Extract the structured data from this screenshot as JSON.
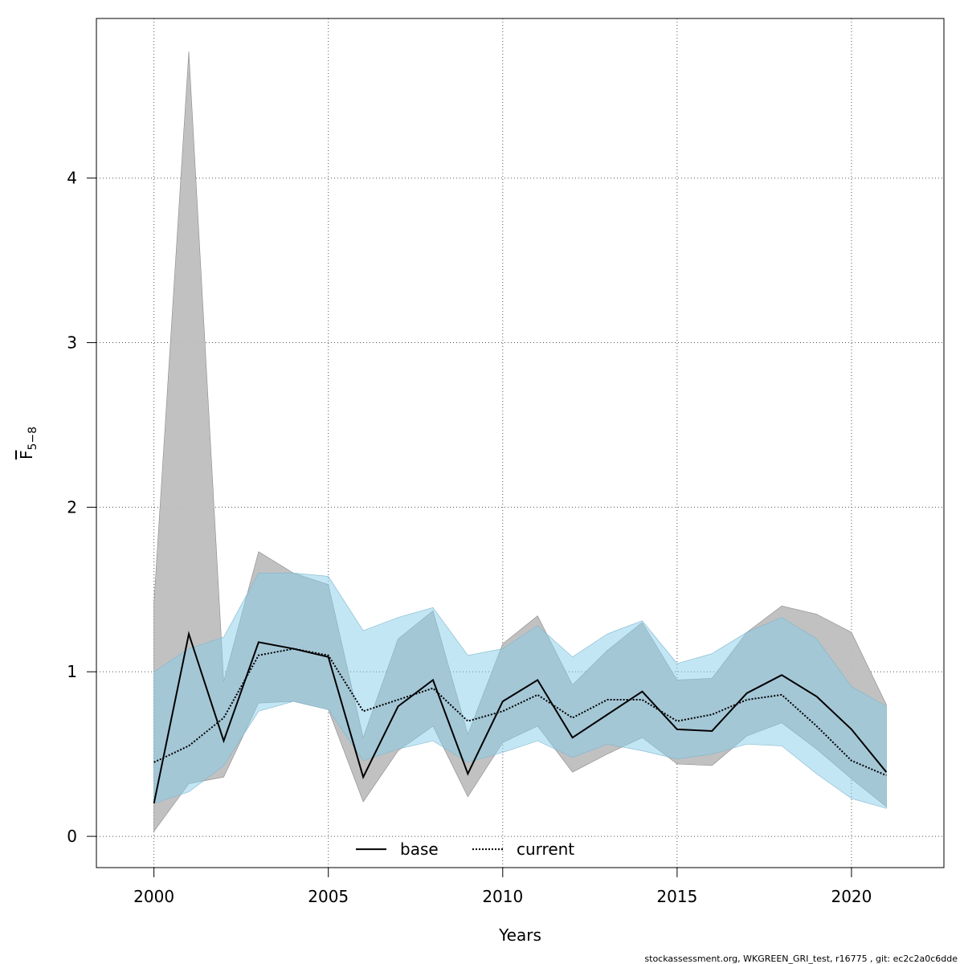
{
  "chart_data": {
    "type": "line",
    "title": "",
    "xlabel": "Years",
    "ylabel_main": "F",
    "ylabel_sub": "5−8",
    "xlim": [
      1998.35,
      2022.65
    ],
    "ylim": [
      -0.19,
      4.97
    ],
    "x_ticks": [
      2000,
      2005,
      2010,
      2015,
      2020
    ],
    "y_ticks": [
      0,
      1,
      2,
      3,
      4
    ],
    "grid": true,
    "legend_position": "bottom-center",
    "x": [
      2000,
      2001,
      2002,
      2003,
      2004,
      2005,
      2006,
      2007,
      2008,
      2009,
      2010,
      2011,
      2012,
      2013,
      2014,
      2015,
      2016,
      2017,
      2018,
      2019,
      2020,
      2021
    ],
    "series": [
      {
        "name": "base",
        "color": "#000000",
        "band_color": "#bebebe",
        "line_style": "solid",
        "values": [
          0.2,
          1.23,
          0.58,
          1.18,
          1.14,
          1.09,
          0.36,
          0.79,
          0.95,
          0.38,
          0.82,
          0.95,
          0.6,
          0.74,
          0.88,
          0.65,
          0.64,
          0.87,
          0.98,
          0.85,
          0.65,
          0.39
        ],
        "lower": [
          0.03,
          0.32,
          0.36,
          0.81,
          0.82,
          0.77,
          0.21,
          0.52,
          0.67,
          0.24,
          0.57,
          0.67,
          0.39,
          0.5,
          0.6,
          0.44,
          0.43,
          0.61,
          0.69,
          0.53,
          0.35,
          0.18
        ],
        "upper": [
          1.42,
          4.77,
          0.94,
          1.73,
          1.6,
          1.53,
          0.6,
          1.2,
          1.37,
          0.62,
          1.17,
          1.34,
          0.92,
          1.13,
          1.3,
          0.95,
          0.96,
          1.24,
          1.4,
          1.35,
          1.24,
          0.8
        ]
      },
      {
        "name": "current",
        "color": "#000000",
        "band_color": "#87ceeb",
        "line_style": "dotted",
        "values": [
          0.45,
          0.55,
          0.72,
          1.1,
          1.14,
          1.1,
          0.76,
          0.83,
          0.9,
          0.7,
          0.76,
          0.86,
          0.72,
          0.83,
          0.83,
          0.7,
          0.74,
          0.83,
          0.86,
          0.67,
          0.46,
          0.37
        ],
        "lower": [
          0.2,
          0.27,
          0.43,
          0.76,
          0.82,
          0.77,
          0.46,
          0.53,
          0.58,
          0.45,
          0.51,
          0.58,
          0.48,
          0.56,
          0.52,
          0.47,
          0.5,
          0.56,
          0.55,
          0.38,
          0.23,
          0.17
        ],
        "upper": [
          1.0,
          1.14,
          1.21,
          1.6,
          1.6,
          1.58,
          1.25,
          1.33,
          1.39,
          1.1,
          1.14,
          1.28,
          1.09,
          1.23,
          1.31,
          1.05,
          1.11,
          1.24,
          1.33,
          1.2,
          0.91,
          0.79
        ]
      }
    ]
  },
  "footer": {
    "text": "stockassessment.org, WKGREEN_GRI_test, r16775 , git: ec2c2a0c6dde"
  }
}
